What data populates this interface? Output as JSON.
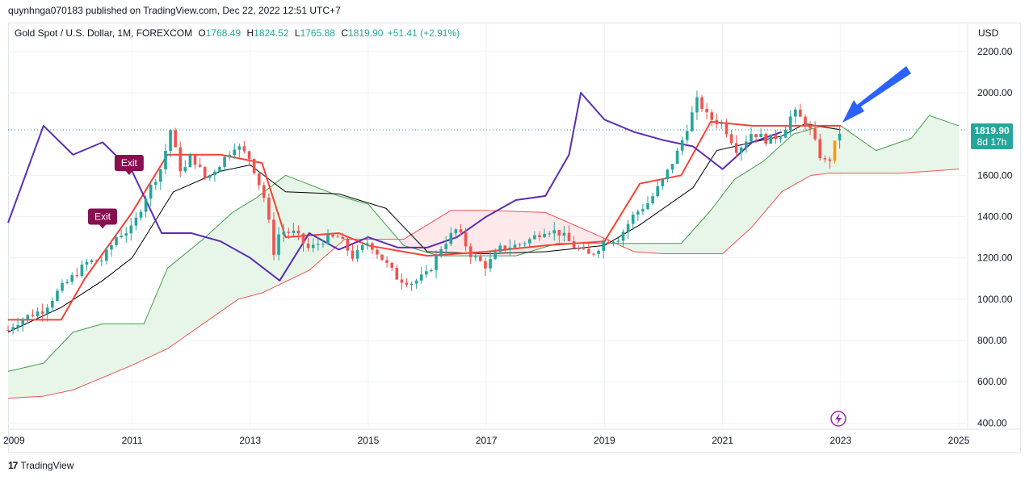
{
  "header": {
    "publish_line": "quynhnga070183 published on TradingView.com, Dec 22, 2022 12:51 UTC+7"
  },
  "legend": {
    "symbol": "Gold Spot / U.S. Dollar, 1M, FOREXCOM",
    "o_label": "O",
    "o_value": "1768.49",
    "h_label": "H",
    "h_value": "1824.52",
    "l_label": "L",
    "l_value": "1765.88",
    "c_label": "C",
    "c_value": "1819.90",
    "change": "+51.41 (+2.91%)"
  },
  "price_axis": {
    "currency": "USD"
  },
  "last_price": {
    "price": "1819.90",
    "countdown": "8d 17h",
    "value": 1819.9
  },
  "signals": [
    {
      "label": "Exit",
      "x": 2010.5,
      "y": 1400
    },
    {
      "label": "Exit",
      "x": 2010.95,
      "y": 1660
    }
  ],
  "footer": {
    "logo": "17",
    "brand": "TradingView"
  },
  "colors": {
    "up": "#26a69a",
    "down": "#ef5350",
    "last_up": "#ff9800",
    "tenkan": "#f44336",
    "kijun": "#000000",
    "chikou": "#5b2db5",
    "span_a": "#43a047",
    "span_b": "#ef5350",
    "cloud_bull": "#e8f5e9",
    "cloud_bear": "#fde9ea",
    "arrow": "#2962ff",
    "exit_flag": "#880e4f",
    "flash": "#9c27b0"
  },
  "chart_data": {
    "type": "candlestick",
    "title": "Gold Spot / U.S. Dollar, 1M, FOREXCOM",
    "y_axis_ticks": [
      "2200.00",
      "2000.00",
      "1800.00",
      "1600.00",
      "1400.00",
      "1200.00",
      "1000.00",
      "800.00",
      "600.00",
      "400.00"
    ],
    "x_axis_ticks": [
      "2009",
      "2011",
      "2013",
      "2015",
      "2017",
      "2019",
      "2021",
      "2023",
      "2025"
    ],
    "ylim": [
      370,
      2340
    ],
    "xlim": [
      2008.9,
      2025.15
    ],
    "close": [
      [
        2008.9,
        850
      ],
      [
        2009.0,
        880
      ],
      [
        2009.25,
        920
      ],
      [
        2009.5,
        950
      ],
      [
        2009.75,
        1040
      ],
      [
        2010.0,
        1110
      ],
      [
        2010.25,
        1180
      ],
      [
        2010.5,
        1190
      ],
      [
        2010.75,
        1310
      ],
      [
        2011.0,
        1340
      ],
      [
        2011.25,
        1510
      ],
      [
        2011.5,
        1640
      ],
      [
        2011.65,
        1820
      ],
      [
        2011.75,
        1700
      ],
      [
        2011.85,
        1600
      ],
      [
        2012.0,
        1700
      ],
      [
        2012.25,
        1580
      ],
      [
        2012.5,
        1660
      ],
      [
        2012.75,
        1750
      ],
      [
        2013.0,
        1680
      ],
      [
        2013.25,
        1480
      ],
      [
        2013.4,
        1230
      ],
      [
        2013.5,
        1330
      ],
      [
        2013.75,
        1320
      ],
      [
        2014.0,
        1240
      ],
      [
        2014.25,
        1290
      ],
      [
        2014.5,
        1300
      ],
      [
        2014.75,
        1200
      ],
      [
        2015.0,
        1280
      ],
      [
        2015.25,
        1190
      ],
      [
        2015.5,
        1100
      ],
      [
        2015.75,
        1080
      ],
      [
        2016.0,
        1120
      ],
      [
        2016.25,
        1260
      ],
      [
        2016.5,
        1340
      ],
      [
        2016.75,
        1210
      ],
      [
        2017.0,
        1160
      ],
      [
        2017.25,
        1250
      ],
      [
        2017.5,
        1260
      ],
      [
        2017.75,
        1290
      ],
      [
        2018.0,
        1340
      ],
      [
        2018.25,
        1320
      ],
      [
        2018.5,
        1250
      ],
      [
        2018.75,
        1210
      ],
      [
        2019.0,
        1280
      ],
      [
        2019.25,
        1300
      ],
      [
        2019.5,
        1410
      ],
      [
        2019.75,
        1470
      ],
      [
        2020.0,
        1580
      ],
      [
        2020.25,
        1720
      ],
      [
        2020.58,
        1970
      ],
      [
        2020.75,
        1880
      ],
      [
        2021.0,
        1850
      ],
      [
        2021.25,
        1720
      ],
      [
        2021.5,
        1810
      ],
      [
        2021.75,
        1770
      ],
      [
        2022.0,
        1800
      ],
      [
        2022.2,
        1910
      ],
      [
        2022.45,
        1840
      ],
      [
        2022.7,
        1660
      ],
      [
        2022.82,
        1680
      ],
      [
        2022.92,
        1768
      ],
      [
        2023.0,
        1819.9
      ]
    ],
    "tenkan": [
      [
        2008.9,
        900
      ],
      [
        2009.8,
        900
      ],
      [
        2010.2,
        1100
      ],
      [
        2011.0,
        1420
      ],
      [
        2011.6,
        1700
      ],
      [
        2012.5,
        1700
      ],
      [
        2013.2,
        1660
      ],
      [
        2013.6,
        1300
      ],
      [
        2014.5,
        1320
      ],
      [
        2015.0,
        1260
      ],
      [
        2016.0,
        1210
      ],
      [
        2017.0,
        1230
      ],
      [
        2018.0,
        1260
      ],
      [
        2019.0,
        1280
      ],
      [
        2019.6,
        1560
      ],
      [
        2020.3,
        1600
      ],
      [
        2020.8,
        1860
      ],
      [
        2021.5,
        1840
      ],
      [
        2022.0,
        1840
      ],
      [
        2022.5,
        1840
      ],
      [
        2023.0,
        1840
      ]
    ],
    "kijun": [
      [
        2008.9,
        840
      ],
      [
        2009.8,
        960
      ],
      [
        2010.5,
        1090
      ],
      [
        2011.0,
        1200
      ],
      [
        2011.7,
        1520
      ],
      [
        2012.5,
        1620
      ],
      [
        2013.0,
        1650
      ],
      [
        2013.6,
        1520
      ],
      [
        2014.5,
        1510
      ],
      [
        2015.3,
        1440
      ],
      [
        2016.0,
        1230
      ],
      [
        2017.0,
        1220
      ],
      [
        2018.0,
        1230
      ],
      [
        2019.0,
        1260
      ],
      [
        2019.6,
        1360
      ],
      [
        2020.5,
        1540
      ],
      [
        2020.9,
        1720
      ],
      [
        2021.5,
        1760
      ],
      [
        2022.0,
        1790
      ],
      [
        2022.4,
        1850
      ],
      [
        2023.0,
        1820
      ]
    ],
    "chikou": [
      [
        2008.9,
        1370
      ],
      [
        2009.5,
        1840
      ],
      [
        2010.0,
        1700
      ],
      [
        2010.5,
        1760
      ],
      [
        2011.0,
        1620
      ],
      [
        2011.5,
        1320
      ],
      [
        2012.0,
        1320
      ],
      [
        2012.5,
        1280
      ],
      [
        2013.0,
        1200
      ],
      [
        2013.5,
        1090
      ],
      [
        2014.0,
        1320
      ],
      [
        2014.5,
        1240
      ],
      [
        2015.0,
        1300
      ],
      [
        2015.5,
        1250
      ],
      [
        2016.0,
        1250
      ],
      [
        2016.5,
        1300
      ],
      [
        2017.0,
        1400
      ],
      [
        2017.5,
        1480
      ],
      [
        2018.0,
        1500
      ],
      [
        2018.4,
        1700
      ],
      [
        2018.6,
        2000
      ],
      [
        2019.0,
        1870
      ],
      [
        2019.5,
        1810
      ],
      [
        2020.0,
        1770
      ],
      [
        2020.5,
        1740
      ],
      [
        2021.0,
        1630
      ],
      [
        2021.5,
        1760
      ],
      [
        2022.0,
        1810
      ]
    ],
    "span_a": [
      [
        2008.9,
        650
      ],
      [
        2009.5,
        690
      ],
      [
        2010.0,
        840
      ],
      [
        2010.5,
        880
      ],
      [
        2011.2,
        880
      ],
      [
        2011.6,
        1150
      ],
      [
        2012.2,
        1290
      ],
      [
        2012.7,
        1420
      ],
      [
        2013.1,
        1490
      ],
      [
        2013.6,
        1600
      ],
      [
        2014.5,
        1500
      ],
      [
        2015.0,
        1460
      ],
      [
        2015.6,
        1260
      ],
      [
        2016.2,
        1210
      ],
      [
        2017.0,
        1210
      ],
      [
        2017.5,
        1210
      ],
      [
        2018.2,
        1270
      ],
      [
        2019.0,
        1270
      ],
      [
        2020.0,
        1270
      ],
      [
        2020.3,
        1270
      ],
      [
        2020.8,
        1430
      ],
      [
        2021.2,
        1580
      ],
      [
        2021.7,
        1670
      ],
      [
        2022.2,
        1800
      ],
      [
        2022.7,
        1840
      ],
      [
        2023.0,
        1840
      ]
    ],
    "span_b": [
      [
        2008.9,
        520
      ],
      [
        2009.5,
        530
      ],
      [
        2010.0,
        560
      ],
      [
        2011.0,
        680
      ],
      [
        2011.6,
        760
      ],
      [
        2012.2,
        880
      ],
      [
        2012.8,
        1000
      ],
      [
        2013.2,
        1030
      ],
      [
        2014.0,
        1140
      ],
      [
        2014.6,
        1290
      ],
      [
        2015.6,
        1290
      ],
      [
        2016.4,
        1430
      ],
      [
        2017.0,
        1430
      ],
      [
        2018.0,
        1420
      ],
      [
        2018.8,
        1320
      ],
      [
        2019.5,
        1230
      ],
      [
        2020.0,
        1220
      ],
      [
        2021.0,
        1220
      ],
      [
        2021.5,
        1350
      ],
      [
        2022.0,
        1520
      ],
      [
        2022.5,
        1600
      ],
      [
        2022.8,
        1610
      ],
      [
        2024.0,
        1610
      ],
      [
        2025.0,
        1630
      ]
    ]
  }
}
